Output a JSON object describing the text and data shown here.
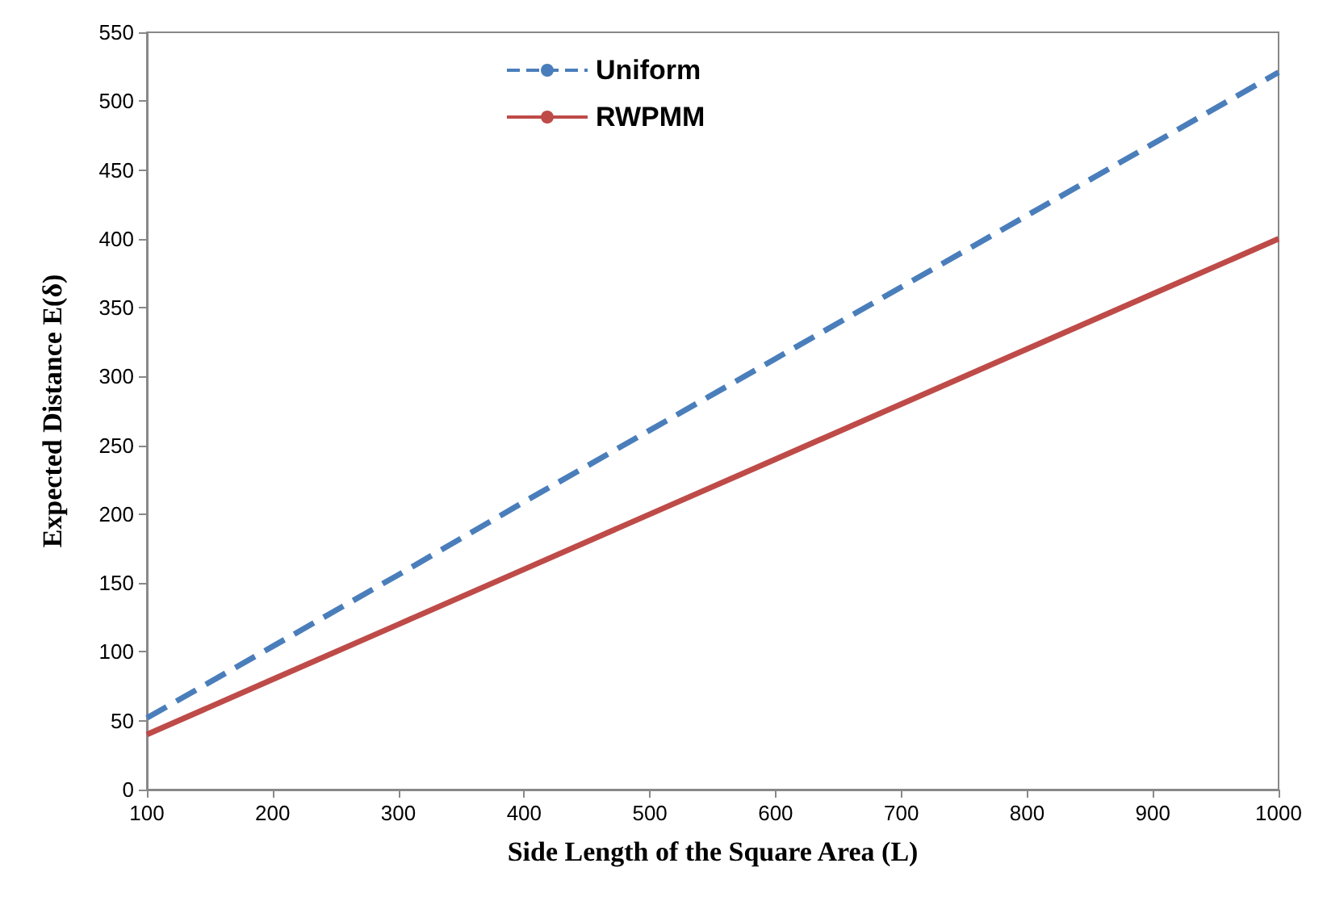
{
  "chart_data": {
    "type": "line",
    "xlabel": "Side Length of the Square Area (L)",
    "ylabel": "Expected Distance E(δ)",
    "x": [
      100,
      200,
      300,
      400,
      500,
      600,
      700,
      800,
      900,
      1000
    ],
    "series": [
      {
        "name": "Uniform",
        "color": "#4a7ebb",
        "line_style": "dashed",
        "values": [
          52,
          104,
          156,
          209,
          261,
          313,
          365,
          417,
          469,
          521
        ]
      },
      {
        "name": "RWPMM",
        "color": "#be4b48",
        "line_style": "solid",
        "values": [
          40,
          80,
          120,
          160,
          200,
          240,
          280,
          320,
          360,
          400
        ]
      }
    ],
    "xlim": [
      100,
      1000
    ],
    "xticks": [
      100,
      200,
      300,
      400,
      500,
      600,
      700,
      800,
      900,
      1000
    ],
    "ylim": [
      0,
      550
    ],
    "yticks": [
      0,
      50,
      100,
      150,
      200,
      250,
      300,
      350,
      400,
      450,
      500,
      550
    ],
    "grid": false,
    "legend": "top",
    "marker": "none"
  }
}
